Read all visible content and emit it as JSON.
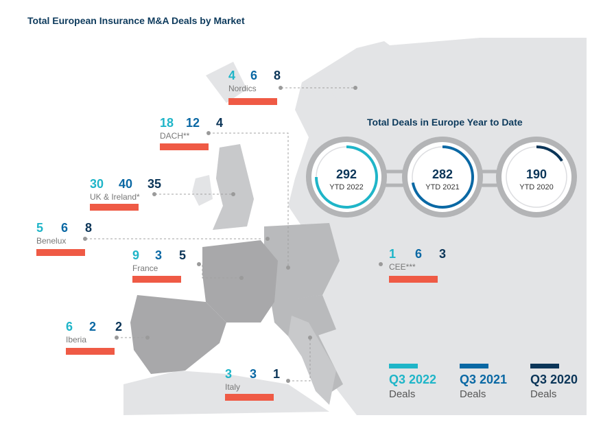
{
  "title": "Total European Insurance M&A Deals by Market",
  "colors": {
    "q3_2022": "#1fb5c8",
    "q3_2021": "#0a68a4",
    "q3_2020": "#0b3558",
    "bar": "#ef5a45",
    "land": "#e3e4e6",
    "highlight_land": "#a8a8aa"
  },
  "chart_data": {
    "type": "table",
    "title": "Total European Insurance M&A Deals by Market",
    "series_names": [
      "Q3 2022",
      "Q3 2021",
      "Q3 2020"
    ],
    "markets": [
      {
        "name": "Nordics",
        "values": [
          4,
          6,
          8
        ]
      },
      {
        "name": "DACH**",
        "values": [
          18,
          12,
          4
        ]
      },
      {
        "name": "UK & Ireland*",
        "values": [
          30,
          40,
          35
        ]
      },
      {
        "name": "Benelux",
        "values": [
          5,
          6,
          8
        ]
      },
      {
        "name": "France",
        "values": [
          9,
          3,
          5
        ]
      },
      {
        "name": "CEE***",
        "values": [
          1,
          6,
          3
        ]
      },
      {
        "name": "Iberia",
        "values": [
          6,
          2,
          2
        ]
      },
      {
        "name": "Italy",
        "values": [
          3,
          3,
          1
        ]
      }
    ],
    "ytd": {
      "title": "Total Deals in Europe Year to Date",
      "items": [
        {
          "value": "292",
          "label": "YTD 2022",
          "fraction": 0.75
        },
        {
          "value": "282",
          "label": "YTD 2021",
          "fraction": 0.72
        },
        {
          "value": "190",
          "label": "YTD 2020",
          "fraction": 0.16
        }
      ]
    },
    "legend": [
      {
        "label": "Q3 2022",
        "sub": "Deals"
      },
      {
        "label": "Q3 2021",
        "sub": "Deals"
      },
      {
        "label": "Q3 2020",
        "sub": "Deals"
      }
    ]
  }
}
